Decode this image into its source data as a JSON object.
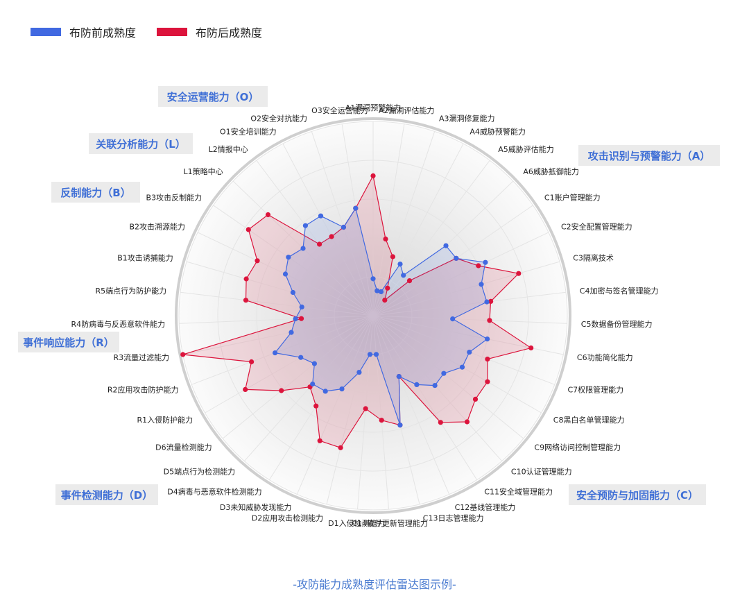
{
  "legend": {
    "before_label": "布防前成熟度",
    "after_label": "布防后成熟度",
    "before_color": "#4169e1",
    "after_color": "#dc143c"
  },
  "caption": "-攻防能力成熟度评估雷达图示例-",
  "chart_data": {
    "type": "radar",
    "title": "",
    "axes": [
      "A1漏洞预警能力",
      "A2漏洞评估能力",
      "A3漏洞修复能力",
      "A4威胁预警能力",
      "A5威胁评估能力",
      "A6威胁抵御能力",
      "C1账户管理能力",
      "C2安全配置管理能力",
      "C3隔离技术",
      "C4加密与签名管理能力",
      "C5数据备份管理能力",
      "C6功能简化能力",
      "C7权限管理能力",
      "C8黑白名单管理能力",
      "C9网络访问控制管理能力",
      "C10认证管理能力",
      "C11安全域管理能力",
      "C12基线管理能力",
      "C13日志管理能力",
      "C14软件更新管理能力",
      "D1入侵检测能力",
      "D2应用攻击检测能力",
      "D3未知威胁发现能力",
      "D4病毒与恶意软件检测能力",
      "D5端点行为检测能力",
      "D6流量检测能力",
      "R1入侵防护能力",
      "R2应用攻击防护能力",
      "R3流量过滤能力",
      "R4防病毒与反恶意软件能力",
      "R5端点行为防护能力",
      "B1攻击诱捕能力",
      "B2攻击溯源能力",
      "B3攻击反制能力",
      "L1策略中心",
      "L2情报中心",
      "O1安全培训能力",
      "O2安全对抗能力",
      "O3安全运营能力"
    ],
    "range": [
      0,
      1
    ],
    "series": [
      {
        "name": "布防前成熟度",
        "values": [
          0.19,
          0.13,
          0.13,
          0.3,
          0.26,
          0.52,
          0.52,
          0.64,
          0.58,
          0.59,
          0.41,
          0.6,
          0.53,
          0.53,
          0.47,
          0.48,
          0.42,
          0.34,
          0.58,
          0.2,
          0.2,
          0.3,
          0.41,
          0.46,
          0.47,
          0.39,
          0.43,
          0.54,
          0.43,
          0.4,
          0.37,
          0.43,
          0.5,
          0.53,
          0.5,
          0.58,
          0.58,
          0.48,
          0.56
        ]
      },
      {
        "name": "布防后成熟度",
        "values": [
          0.72,
          0.4,
          0.32,
          0.16,
          0.1,
          0.26,
          0.52,
          0.6,
          0.78,
          0.61,
          0.6,
          0.83,
          0.63,
          0.68,
          0.68,
          0.73,
          0.65,
          0.34,
          0.58,
          0.54,
          0.48,
          0.7,
          0.7,
          0.55,
          0.49,
          0.61,
          0.76,
          0.67,
          1.0,
          0.37,
          0.66,
          0.68,
          0.66,
          0.78,
          0.75,
          0.46,
          0.46,
          0.48,
          0.56
        ]
      }
    ],
    "groups": [
      {
        "label": "安全运营能力（O）"
      },
      {
        "label": "关联分析能力（L）"
      },
      {
        "label": "反制能力（B）"
      },
      {
        "label": "攻击识别与预警能力（A）"
      },
      {
        "label": "事件响应能力（R）"
      },
      {
        "label": "事件检测能力（D）"
      },
      {
        "label": "安全预防与加固能力（C）"
      }
    ],
    "grid": true,
    "legend_position": "top-left"
  }
}
